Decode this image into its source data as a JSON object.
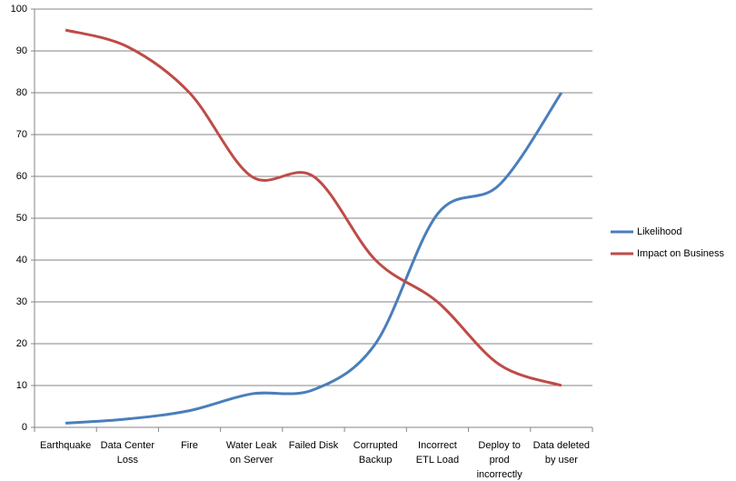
{
  "chart_data": {
    "type": "line",
    "categories": [
      "Earthquake",
      "Data Center Loss",
      "Fire",
      "Water Leak on Server",
      "Failed Disk",
      "Corrupted Backup",
      "Incorrect ETL Load",
      "Deploy to prod incorrectly",
      "Data deleted by user"
    ],
    "series": [
      {
        "name": "Likelihood",
        "color": "#4a7ebb",
        "values": [
          1,
          2,
          4,
          8,
          9,
          20,
          51,
          58,
          80
        ]
      },
      {
        "name": "Impact on Business",
        "color": "#be4b48",
        "values": [
          95,
          91,
          80,
          60,
          60,
          40,
          30,
          15,
          10
        ]
      }
    ],
    "ylim": [
      0,
      100
    ],
    "yticks": [
      0,
      10,
      20,
      30,
      40,
      50,
      60,
      70,
      80,
      90,
      100
    ],
    "grid": true,
    "smooth": true,
    "legend": "right"
  }
}
